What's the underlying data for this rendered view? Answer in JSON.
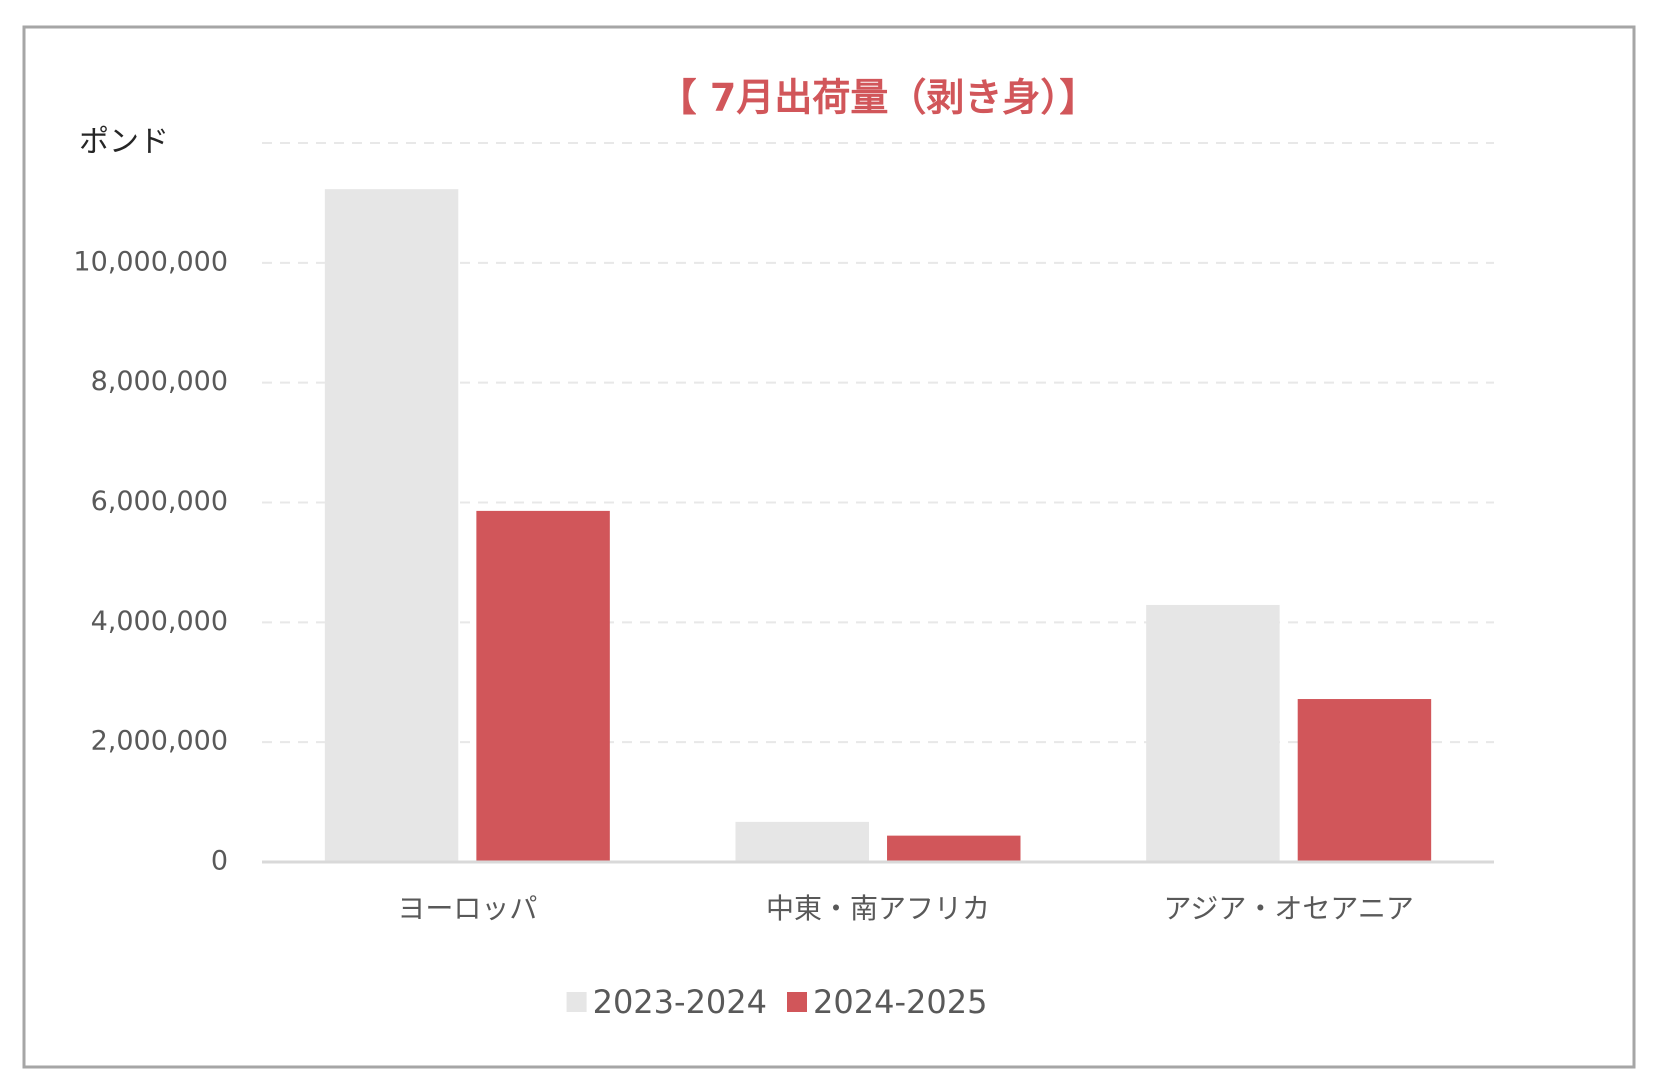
{
  "chart_data": {
    "type": "bar",
    "title": "【 7月出荷量（剥き身）】",
    "y_axis_label": "ポンド",
    "categories": [
      "ヨーロッパ",
      "中東・南アフリカ",
      "アジア・オセアニア"
    ],
    "series": [
      {
        "name": "2023-2024",
        "color": "#e6e6e6",
        "values": [
          11230000,
          670000,
          4290000
        ]
      },
      {
        "name": "2024-2025",
        "color": "#d1565a",
        "values": [
          5860000,
          440000,
          2720000
        ]
      }
    ],
    "ylim": [
      0,
      12000000
    ],
    "yticks": [
      0,
      {
        "value": 2000000,
        "label": "2,000,000"
      },
      {
        "value": 4000000,
        "label": "4,000,000"
      },
      {
        "value": 6000000,
        "label": "6,000,000"
      },
      {
        "value": 8000000,
        "label": "8,000,000"
      },
      {
        "value": 10000000,
        "label": "10,000,000"
      }
    ],
    "grid": true,
    "legend": "bottom"
  }
}
